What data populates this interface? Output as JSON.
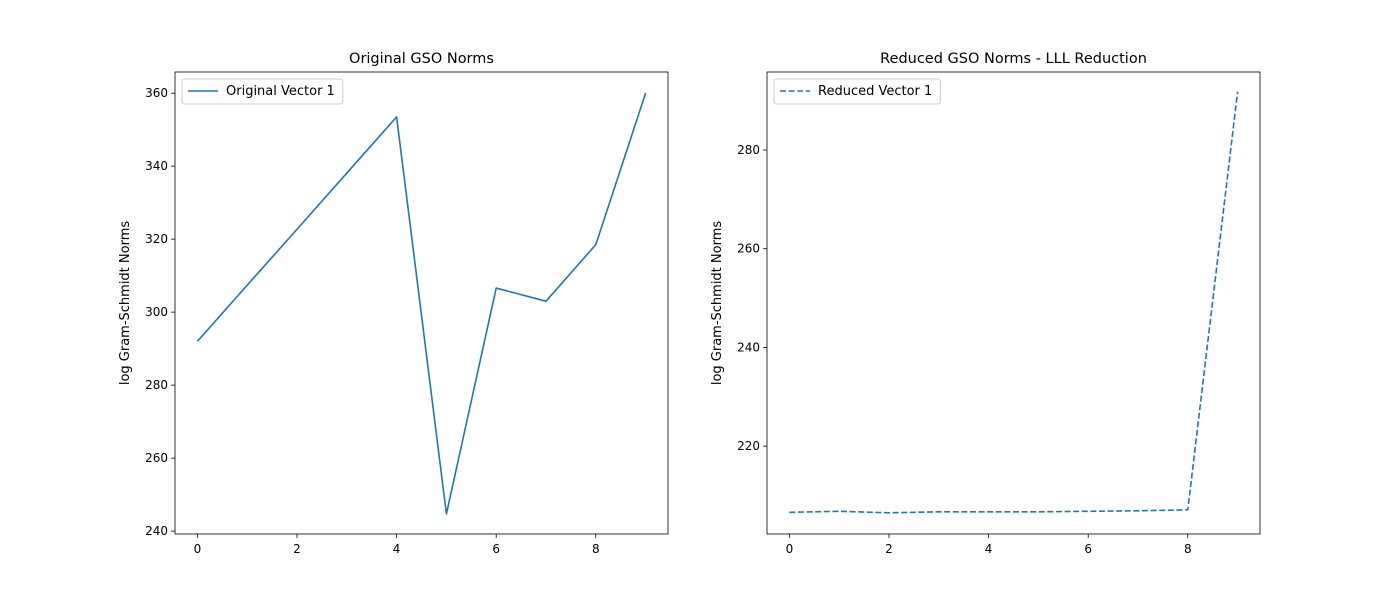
{
  "chart_data": [
    {
      "type": "line",
      "title": "Original GSO Norms",
      "xlabel": "",
      "ylabel": "log Gram-Schmidt Norms",
      "xlim": [
        -0.45,
        9.45
      ],
      "ylim": [
        239.2,
        365.8
      ],
      "xticks": [
        0,
        2,
        4,
        6,
        8
      ],
      "yticks": [
        240,
        260,
        280,
        300,
        320,
        340,
        360
      ],
      "grid": false,
      "legend": "top-left",
      "series": [
        {
          "name": "Original Vector 1",
          "style": "solid",
          "color": "#1f77b4",
          "x": [
            0,
            1,
            2,
            3,
            4,
            5,
            6,
            7,
            8,
            9
          ],
          "y": [
            292,
            307.4,
            322.7,
            338.1,
            353.5,
            244.7,
            306.6,
            303,
            318.5,
            360
          ]
        }
      ]
    },
    {
      "type": "line",
      "title": "Reduced GSO Norms - LLL Reduction",
      "xlabel": "",
      "ylabel": "log Gram-Schmidt Norms",
      "xlim": [
        -0.45,
        9.45
      ],
      "ylim": [
        202.2,
        295.8
      ],
      "xticks": [
        0,
        2,
        4,
        6,
        8
      ],
      "yticks": [
        220,
        240,
        260,
        280
      ],
      "grid": false,
      "legend": "top-left",
      "series": [
        {
          "name": "Reduced Vector 1",
          "style": "dashed",
          "color": "#1f77b4",
          "x": [
            0,
            1,
            2,
            3,
            4,
            5,
            6,
            7,
            8,
            9
          ],
          "y": [
            206.6,
            206.8,
            206.5,
            206.7,
            206.7,
            206.7,
            206.8,
            206.9,
            207.1,
            291.8
          ]
        }
      ]
    }
  ]
}
